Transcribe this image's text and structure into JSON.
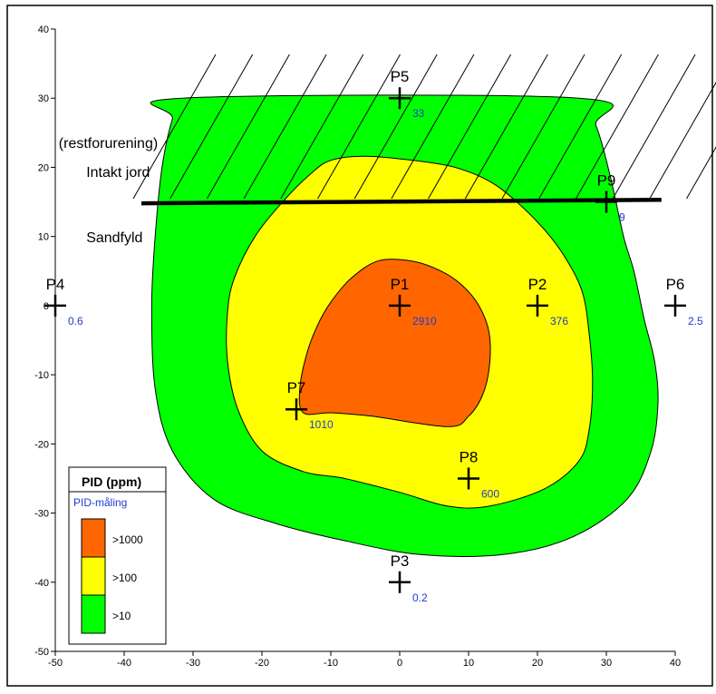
{
  "chart_data": {
    "type": "contour",
    "title": "",
    "xlabel": "",
    "ylabel": "",
    "xlim": [
      -50,
      40
    ],
    "ylim": [
      -50,
      40
    ],
    "x_ticks": [
      -50,
      -40,
      -30,
      -20,
      -10,
      0,
      10,
      20,
      30,
      40
    ],
    "y_ticks": [
      -50,
      -40,
      -30,
      -20,
      -10,
      0,
      10,
      20,
      30,
      40
    ],
    "grid": false,
    "legend": {
      "position": "bottom-left",
      "title": "PID (ppm)",
      "subtitle": "PID-måling",
      "entries": [
        {
          "label": ">1000",
          "color": "#ff6600"
        },
        {
          "label": ">100",
          "color": "#ffff00"
        },
        {
          "label": ">10",
          "color": "#00ff00"
        }
      ]
    },
    "points": [
      {
        "name": "P1",
        "x": 0,
        "y": 0,
        "value": "2910"
      },
      {
        "name": "P2",
        "x": 20,
        "y": 0,
        "value": "376"
      },
      {
        "name": "P3",
        "x": 0,
        "y": -40,
        "value": "0.2"
      },
      {
        "name": "P4",
        "x": -50,
        "y": 0,
        "value": "0.6"
      },
      {
        "name": "P5",
        "x": 0,
        "y": 30,
        "value": "33"
      },
      {
        "name": "P6",
        "x": 40,
        "y": 0,
        "value": "2.5"
      },
      {
        "name": "P7",
        "x": -15,
        "y": -15,
        "value": "1010"
      },
      {
        "name": "P8",
        "x": 10,
        "y": -25,
        "value": "600"
      },
      {
        "name": "P9",
        "x": 30,
        "y": 15,
        "value": "9"
      }
    ],
    "annotations": [
      {
        "text": "(restforurening)",
        "x": -49.5,
        "y": 22.8
      },
      {
        "text": "Intakt jord",
        "x": -45.5,
        "y": 18.6
      },
      {
        "text": "Sandfyld",
        "x": -45.5,
        "y": 9.2
      }
    ],
    "boundary_line": [
      [
        -37.5,
        14.8
      ],
      [
        38,
        15.3
      ]
    ],
    "contours": [
      {
        "level": ">10",
        "color": "#00ff00",
        "path": [
          [
            -31.5,
            30
          ],
          [
            26,
            30
          ],
          [
            28.5,
            26
          ],
          [
            30.5,
            19
          ],
          [
            32.5,
            10
          ],
          [
            34,
            5
          ],
          [
            35.5,
            -2
          ],
          [
            37,
            -8
          ],
          [
            37.5,
            -14
          ],
          [
            36.5,
            -21
          ],
          [
            33,
            -28
          ],
          [
            25,
            -33.5
          ],
          [
            15,
            -36
          ],
          [
            3,
            -36
          ],
          [
            -8,
            -34
          ],
          [
            -18,
            -31.5
          ],
          [
            -27,
            -28
          ],
          [
            -33,
            -21
          ],
          [
            -35.5,
            -12
          ],
          [
            -36,
            0
          ],
          [
            -35.5,
            10
          ],
          [
            -34.5,
            20
          ],
          [
            -33,
            27
          ]
        ]
      },
      {
        "level": ">100",
        "color": "#ffff00",
        "path": [
          [
            -10,
            21
          ],
          [
            -5,
            21.6
          ],
          [
            2,
            21
          ],
          [
            8,
            20
          ],
          [
            13,
            18
          ],
          [
            17,
            15
          ],
          [
            21,
            11
          ],
          [
            24,
            7
          ],
          [
            26.5,
            2
          ],
          [
            27.5,
            -4
          ],
          [
            28,
            -11
          ],
          [
            27.5,
            -18
          ],
          [
            26,
            -22.5
          ],
          [
            21,
            -26.5
          ],
          [
            13,
            -29
          ],
          [
            7,
            -29
          ],
          [
            0,
            -27
          ],
          [
            -8,
            -25
          ],
          [
            -14,
            -24
          ],
          [
            -20,
            -21
          ],
          [
            -23.5,
            -15
          ],
          [
            -25,
            -8
          ],
          [
            -25,
            -1
          ],
          [
            -24,
            4
          ],
          [
            -21,
            10
          ],
          [
            -17,
            15
          ],
          [
            -13,
            19
          ]
        ]
      },
      {
        "level": ">1000",
        "color": "#ff6600",
        "path": [
          [
            -3,
            6.5
          ],
          [
            2,
            6.4
          ],
          [
            6,
            5
          ],
          [
            9,
            3
          ],
          [
            11.5,
            0
          ],
          [
            13,
            -4
          ],
          [
            13,
            -9
          ],
          [
            12,
            -13
          ],
          [
            10,
            -16
          ],
          [
            7,
            -17.5
          ],
          [
            -4,
            -16
          ],
          [
            -10,
            -15.5
          ],
          [
            -14,
            -15.5
          ],
          [
            -14.5,
            -12
          ],
          [
            -13.5,
            -7
          ],
          [
            -12,
            -3
          ],
          [
            -10,
            0.5
          ],
          [
            -7,
            4
          ]
        ]
      }
    ]
  }
}
